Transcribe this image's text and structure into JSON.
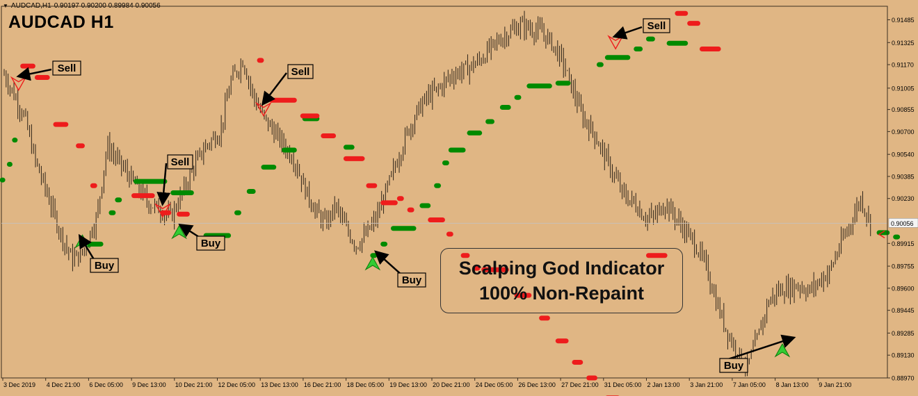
{
  "header": {
    "symbol_label": "AUDCAD,H1",
    "ohlc_values": "0.90197 0.90200 0.89984 0.90056",
    "big_title": "AUDCAD H1"
  },
  "promo": {
    "line1": "Scalping God Indicator",
    "line2": "100% Non-Repaint"
  },
  "chart_data": {
    "type": "candlestick",
    "title": "AUDCAD H1",
    "symbol": "AUDCAD",
    "timeframe": "H1",
    "ylim": [
      0.8897,
      0.9158
    ],
    "y_ticks": [
      "0.91485",
      "0.91325",
      "0.91170",
      "0.91005",
      "0.90855",
      "0.90700",
      "0.90540",
      "0.90385",
      "0.90230",
      "0.89915",
      "0.89755",
      "0.89600",
      "0.89445",
      "0.89285",
      "0.89130",
      "0.88970"
    ],
    "current_price": "0.90056",
    "x_tick_labels": [
      "3 Dec 2019",
      "4 Dec 21:00",
      "6 Dec 05:00",
      "9 Dec 13:00",
      "10 Dec 21:00",
      "12 Dec 05:00",
      "13 Dec 13:00",
      "16 Dec 21:00",
      "18 Dec 05:00",
      "19 Dec 13:00",
      "20 Dec 21:00",
      "24 Dec 05:00",
      "26 Dec 13:00",
      "27 Dec 21:00",
      "31 Dec 05:00",
      "2 Jan 13:00",
      "3 Jan 21:00",
      "7 Jan 05:00",
      "8 Jan 13:00",
      "9 Jan 21:00"
    ],
    "price_path": [
      [
        0,
        0.911
      ],
      [
        0.5,
        0.9095
      ],
      [
        1,
        0.908
      ],
      [
        1.5,
        0.905
      ],
      [
        2,
        0.903
      ],
      [
        2.7,
        0.9
      ],
      [
        3.3,
        0.898
      ],
      [
        3.8,
        0.8985
      ],
      [
        4.5,
        0.901
      ],
      [
        5,
        0.906
      ],
      [
        5.5,
        0.905
      ],
      [
        6,
        0.904
      ],
      [
        6.5,
        0.903
      ],
      [
        7,
        0.902
      ],
      [
        7.6,
        0.9015
      ],
      [
        8.1,
        0.901
      ],
      [
        8.6,
        0.9025
      ],
      [
        9.2,
        0.9045
      ],
      [
        9.8,
        0.906
      ],
      [
        10.5,
        0.907
      ],
      [
        11,
        0.9105
      ],
      [
        11.6,
        0.912
      ],
      [
        12.1,
        0.9095
      ],
      [
        12.6,
        0.908
      ],
      [
        13.1,
        0.907
      ],
      [
        13.6,
        0.906
      ],
      [
        14.1,
        0.905
      ],
      [
        14.6,
        0.903
      ],
      [
        15.1,
        0.9015
      ],
      [
        15.6,
        0.9005
      ],
      [
        16.1,
        0.9018
      ],
      [
        16.6,
        0.9002
      ],
      [
        17.1,
        0.899
      ],
      [
        17.6,
        0.8998
      ],
      [
        18.1,
        0.901
      ],
      [
        18.6,
        0.903
      ],
      [
        19.1,
        0.905
      ],
      [
        19.6,
        0.907
      ],
      [
        20.1,
        0.9085
      ],
      [
        20.6,
        0.9095
      ],
      [
        21.1,
        0.91
      ],
      [
        21.6,
        0.9108
      ],
      [
        22.1,
        0.9112
      ],
      [
        22.6,
        0.9115
      ],
      [
        23.1,
        0.912
      ],
      [
        23.6,
        0.9128
      ],
      [
        24.1,
        0.9135
      ],
      [
        24.6,
        0.914
      ],
      [
        25.1,
        0.9145
      ],
      [
        25.6,
        0.9142
      ],
      [
        26.1,
        0.914
      ],
      [
        26.6,
        0.9132
      ],
      [
        27.1,
        0.912
      ],
      [
        27.6,
        0.91
      ],
      [
        28.1,
        0.908
      ],
      [
        28.6,
        0.907
      ],
      [
        29.1,
        0.9055
      ],
      [
        29.6,
        0.904
      ],
      [
        30.1,
        0.9025
      ],
      [
        30.6,
        0.902
      ],
      [
        31.1,
        0.901
      ],
      [
        31.6,
        0.901
      ],
      [
        32.1,
        0.902
      ],
      [
        32.6,
        0.901
      ],
      [
        33.1,
        0.9
      ],
      [
        33.6,
        0.899
      ],
      [
        34.1,
        0.8975
      ],
      [
        34.6,
        0.895
      ],
      [
        35.1,
        0.893
      ],
      [
        35.6,
        0.8915
      ],
      [
        36.1,
        0.8905
      ],
      [
        36.6,
        0.8925
      ],
      [
        37.1,
        0.895
      ],
      [
        37.6,
        0.8958
      ],
      [
        38.1,
        0.896
      ],
      [
        38.6,
        0.8962
      ],
      [
        39.1,
        0.8958
      ],
      [
        39.6,
        0.8965
      ],
      [
        40.1,
        0.8972
      ],
      [
        40.6,
        0.899
      ],
      [
        41.1,
        0.9005
      ],
      [
        41.6,
        0.9023
      ],
      [
        42.1,
        0.9005
      ]
    ],
    "series": [
      {
        "name": "buy_levels",
        "color": "#008a00",
        "segments": [
          [
            -0.2,
            -0.05,
            0.9036
          ],
          [
            0.15,
            0.3,
            0.9047
          ],
          [
            0.4,
            0.6,
            0.9064
          ],
          [
            4,
            4.8,
            0.8991
          ],
          [
            5.1,
            5.4,
            0.9013
          ],
          [
            5.4,
            5.7,
            0.9022
          ],
          [
            6.3,
            7.9,
            0.9035
          ],
          [
            8.1,
            9.2,
            0.9027
          ],
          [
            9.7,
            11,
            0.8997
          ],
          [
            11.2,
            11.5,
            0.9013
          ],
          [
            11.8,
            12.2,
            0.9028
          ],
          [
            12.5,
            13.2,
            0.9045
          ],
          [
            13.5,
            14.2,
            0.9057
          ],
          [
            14.5,
            15.3,
            0.9079
          ],
          [
            16.5,
            17,
            0.9059
          ],
          [
            17.8,
            18.1,
            0.8983
          ],
          [
            18.3,
            18.6,
            0.8991
          ],
          [
            18.8,
            20,
            0.9002
          ],
          [
            20.2,
            20.7,
            0.9018
          ],
          [
            20.9,
            21.2,
            0.9032
          ],
          [
            21.3,
            21.6,
            0.9048
          ],
          [
            21.6,
            22.4,
            0.9057
          ],
          [
            22.5,
            23.2,
            0.9069
          ],
          [
            23.4,
            23.8,
            0.9077
          ],
          [
            24.1,
            24.6,
            0.9087
          ],
          [
            24.8,
            25.1,
            0.9094
          ],
          [
            25.4,
            26.6,
            0.9102
          ],
          [
            26.8,
            27.5,
            0.9104
          ],
          [
            28.8,
            29.1,
            0.9117
          ],
          [
            29.2,
            30.4,
            0.9122
          ],
          [
            30.6,
            31,
            0.9128
          ],
          [
            31.2,
            31.6,
            0.9135
          ],
          [
            31.8,
            32.1,
            0.9143
          ],
          [
            32.2,
            33.2,
            0.9132
          ],
          [
            42.4,
            43,
            0.8999
          ],
          [
            43.2,
            43.5,
            0.8996
          ]
        ]
      },
      {
        "name": "sell_levels",
        "color": "#ee1c1c",
        "segments": [
          [
            0.8,
            1.5,
            0.9116
          ],
          [
            1.5,
            2.2,
            0.9108
          ],
          [
            2.4,
            3.1,
            0.9075
          ],
          [
            3.5,
            3.9,
            0.906
          ],
          [
            4.2,
            4.5,
            0.9032
          ],
          [
            6.2,
            7.3,
            0.9025
          ],
          [
            7.6,
            8.1,
            0.9013
          ],
          [
            8.4,
            9,
            0.9012
          ],
          [
            12.3,
            12.6,
            0.912
          ],
          [
            12.9,
            14.2,
            0.9092
          ],
          [
            14.4,
            15.3,
            0.9081
          ],
          [
            15.4,
            16.1,
            0.9067
          ],
          [
            16.5,
            17.5,
            0.9051
          ],
          [
            17.6,
            18.1,
            0.9032
          ],
          [
            18.3,
            19.1,
            0.902
          ],
          [
            19.1,
            19.4,
            0.9023
          ],
          [
            19.6,
            19.9,
            0.9015
          ],
          [
            20.6,
            21.4,
            0.9008
          ],
          [
            21.5,
            21.8,
            0.8998
          ],
          [
            22.2,
            22.6,
            0.8983
          ],
          [
            22.8,
            23.1,
            0.8974
          ],
          [
            23.2,
            24.5,
            0.8973
          ],
          [
            24.8,
            25.6,
            0.8955
          ],
          [
            26,
            26.5,
            0.8939
          ],
          [
            26.8,
            27.4,
            0.8923
          ],
          [
            27.6,
            28.1,
            0.8908
          ],
          [
            28.3,
            28.8,
            0.8897
          ],
          [
            29.2,
            29.9,
            0.8883
          ],
          [
            30.1,
            30.6,
            0.8872
          ],
          [
            31.2,
            32.2,
            0.8983
          ],
          [
            32.6,
            33.2,
            0.9153
          ],
          [
            33.2,
            33.8,
            0.9146
          ],
          [
            33.8,
            34.8,
            0.9128
          ]
        ]
      }
    ],
    "annotations": [
      {
        "label": "Sell"
      },
      {
        "label": "Buy"
      },
      {
        "label": "Sell"
      },
      {
        "label": "Buy"
      },
      {
        "label": "Sell"
      },
      {
        "label": "Buy"
      },
      {
        "label": "Sell"
      },
      {
        "label": "Buy"
      }
    ],
    "grid": false
  }
}
